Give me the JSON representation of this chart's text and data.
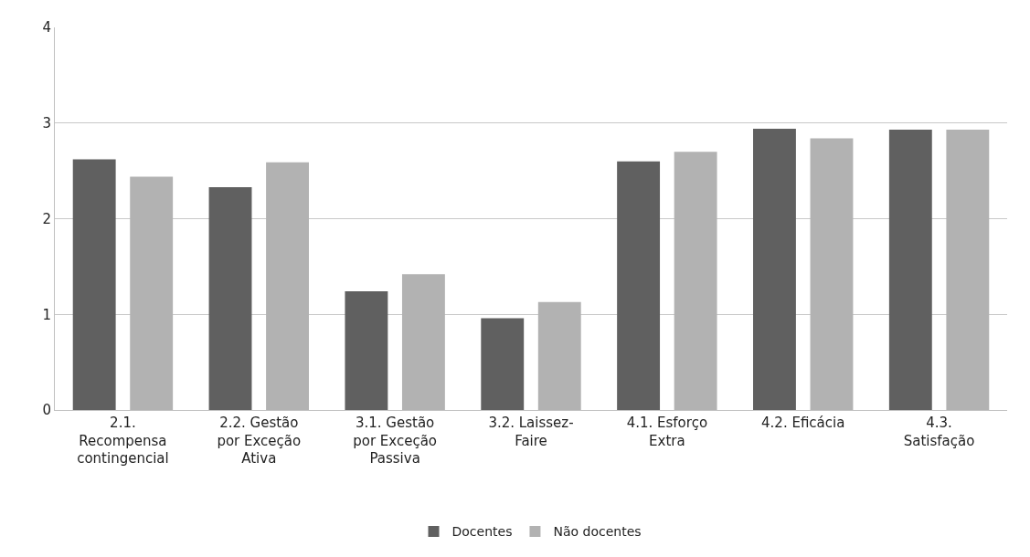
{
  "chart_data": {
    "type": "bar",
    "categories": [
      "2.1. Recompensa contingencial",
      "2.2. Gestão por Exceção Ativa",
      "3.1. Gestão por Exceção Passiva",
      "3.2. Laissez-Faire",
      "4.1. Esforço Extra",
      "4.2. Eficácia",
      "4.3. Satisfação"
    ],
    "series": [
      {
        "name": "Docentes",
        "color": "#606060",
        "values": [
          2.62,
          2.33,
          1.24,
          0.96,
          2.6,
          2.94,
          2.93
        ]
      },
      {
        "name": "Não docentes",
        "color": "#b2b2b2",
        "values": [
          2.44,
          2.59,
          1.42,
          1.13,
          2.7,
          2.84,
          2.93
        ]
      }
    ],
    "ylim": [
      0,
      4
    ],
    "yticks": [
      0,
      1,
      2,
      3,
      4
    ],
    "grid": "y",
    "legend": "bottom"
  }
}
